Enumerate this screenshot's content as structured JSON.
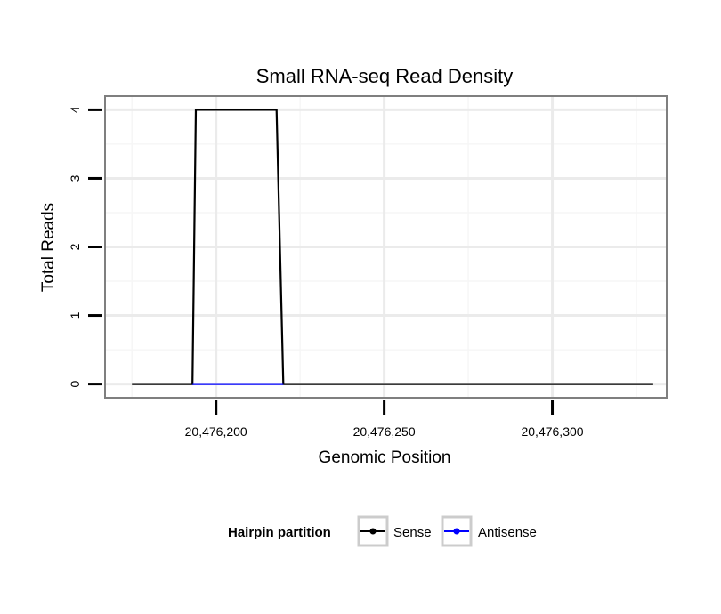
{
  "chart_data": {
    "type": "line",
    "title": "Small RNA-seq Read Density",
    "xlabel": "Genomic Position",
    "ylabel": "Total Reads",
    "xlim": [
      20476167,
      20476334
    ],
    "ylim": [
      -0.2,
      4.2
    ],
    "x_ticks": [
      20476200,
      20476250,
      20476300
    ],
    "x_tick_labels": [
      "20,476,200",
      "20,476,250",
      "20,476,300"
    ],
    "y_ticks": [
      0,
      1,
      2,
      3,
      4
    ],
    "y_tick_labels": [
      "0",
      "1",
      "2",
      "3",
      "4"
    ],
    "grid": true,
    "legend_title": "Hairpin partition",
    "legend_position": "bottom",
    "series": [
      {
        "name": "Sense",
        "color": "#000000",
        "x": [
          20476175,
          20476193,
          20476194,
          20476218,
          20476220,
          20476330
        ],
        "y": [
          0,
          0,
          4,
          4,
          0,
          0
        ]
      },
      {
        "name": "Antisense",
        "color": "#0000ff",
        "x": [
          20476193,
          20476220
        ],
        "y": [
          0,
          0
        ]
      }
    ]
  }
}
